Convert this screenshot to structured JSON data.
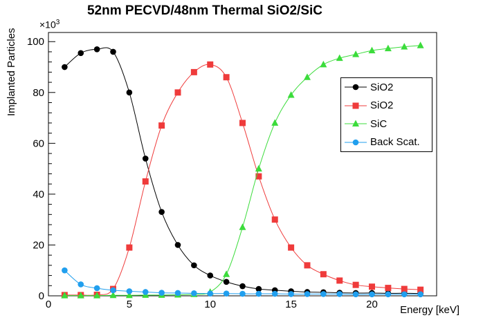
{
  "title": "52nm PECVD/48nm Thermal SiO2/SiC",
  "axes": {
    "x_label": "Energy [keV]",
    "y_label": "Implanted Particles",
    "y_power_base": "×10",
    "y_power_exp": "3"
  },
  "legend": {
    "entries": [
      {
        "label": "SiO2",
        "marker": "circle",
        "color": "#000000"
      },
      {
        "label": "SiO2",
        "marker": "square",
        "color": "#ef3b3b"
      },
      {
        "label": "SiC",
        "marker": "triangle",
        "color": "#3bdc3b"
      },
      {
        "label": "Back Scat.",
        "marker": "circle",
        "color": "#219fee"
      }
    ],
    "position": "upper-right"
  },
  "chart_data": {
    "type": "line",
    "title": "52nm PECVD/48nm Thermal SiO2/SiC",
    "xlabel": "Energy [keV]",
    "ylabel": "Implanted Particles",
    "y_unit_multiplier": "x10^3",
    "xlim": [
      0,
      24
    ],
    "ylim": [
      0,
      103.6
    ],
    "x_major_ticks": [
      0,
      5,
      10,
      15,
      20
    ],
    "x_minor_step": 1,
    "y_major_ticks": [
      0,
      20,
      40,
      60,
      80,
      100
    ],
    "y_minor_step": 4,
    "grid": false,
    "legend_position": "upper-right",
    "x": [
      1,
      2,
      3,
      4,
      5,
      6,
      7,
      8,
      9,
      10,
      11,
      12,
      13,
      14,
      15,
      16,
      17,
      18,
      19,
      20,
      21,
      22,
      23
    ],
    "series": [
      {
        "name": "SiO2",
        "marker": "circle",
        "color": "#000000",
        "values": [
          90,
          95.5,
          97,
          96,
          80,
          54,
          33,
          20,
          12,
          8,
          5.5,
          3.8,
          2.7,
          2.2,
          1.8,
          1.5,
          1.4,
          1.2,
          1.1,
          1.1,
          1.0,
          1.0,
          0.9
        ]
      },
      {
        "name": "SiO2",
        "marker": "square",
        "color": "#ef3b3b",
        "values": [
          0.3,
          0.3,
          0.4,
          2.7,
          19,
          45,
          67,
          80,
          88,
          91,
          86,
          68,
          47,
          30,
          19,
          12,
          8.5,
          6,
          4.3,
          3.6,
          3.1,
          2.7,
          2.4
        ]
      },
      {
        "name": "SiC",
        "marker": "triangle",
        "color": "#3bdc3b",
        "values": [
          0.1,
          0.1,
          0.1,
          0.2,
          0.2,
          0.3,
          0.3,
          0.4,
          0.6,
          1.5,
          8.5,
          27,
          50,
          68,
          79,
          86,
          91,
          93.5,
          95,
          96.5,
          97.3,
          98,
          98.5
        ]
      },
      {
        "name": "Back Scat.",
        "marker": "circle",
        "color": "#219fee",
        "values": [
          10,
          4.5,
          3,
          2.2,
          1.8,
          1.5,
          1.2,
          1.1,
          1.0,
          0.9,
          0.9,
          0.8,
          0.8,
          0.8,
          0.7,
          0.7,
          0.7,
          0.7,
          0.6,
          0.6,
          0.6,
          0.6,
          0.6
        ]
      }
    ]
  }
}
